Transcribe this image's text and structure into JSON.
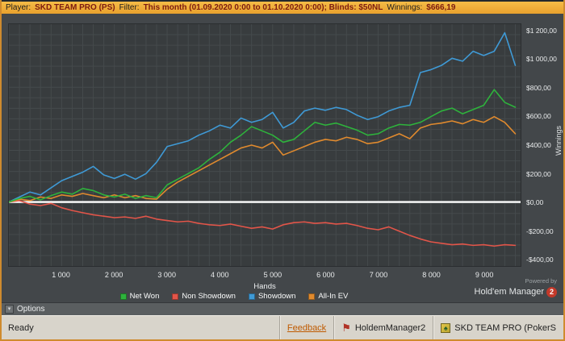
{
  "titlebar": {
    "player_label": "Player:",
    "player_value": "SKD TEAM PRO (PS)",
    "filter_label": "Filter:",
    "filter_value": "This month (01.09.2020 0:00 to 01.10.2020 0:00); Blinds: $50NL",
    "winnings_label": "Winnings:",
    "winnings_value": "$666,19"
  },
  "options_bar": {
    "label": "Options",
    "icon": "options-expander-icon"
  },
  "powered_by": {
    "line1": "Powered by",
    "line2": "Hold'em Manager",
    "badge": "2"
  },
  "status_bar": {
    "ready": "Ready",
    "feedback": "Feedback",
    "app1": "HoldemManager2",
    "app2": "SKD TEAM PRO (PokerS"
  },
  "colors": {
    "net_won": "#2eb33c",
    "non_showdown": "#e25549",
    "showdown": "#3f9ad6",
    "allin_ev": "#e08a2e",
    "zero_line": "#ffffff",
    "titlebar_bg": "#eda733",
    "plot_bg": "#383c3e"
  },
  "chart_data": {
    "type": "line",
    "title": "",
    "xlabel": "Hands",
    "ylabel": "Winnings",
    "xlim": [
      0,
      9700
    ],
    "ylim": [
      -450,
      1250
    ],
    "grid": true,
    "legend_position": "bottom",
    "zero_line_value": 0,
    "x_tick_values": [
      1000,
      2000,
      3000,
      4000,
      5000,
      6000,
      7000,
      8000,
      9000
    ],
    "x_tick_labels": [
      "1 000",
      "2 000",
      "3 000",
      "4 000",
      "5 000",
      "6 000",
      "7 000",
      "8 000",
      "9 000"
    ],
    "y_tick_values": [
      1200,
      1000,
      800,
      600,
      400,
      200,
      0,
      -200,
      -400
    ],
    "y_tick_labels": [
      "$1 200,00",
      "$1 000,00",
      "$800,00",
      "$600,00",
      "$400,00",
      "$200,00",
      "$0,00",
      "-$200,00",
      "-$400,00"
    ],
    "x": [
      0,
      200,
      400,
      600,
      800,
      1000,
      1200,
      1400,
      1600,
      1800,
      2000,
      2200,
      2400,
      2600,
      2800,
      3000,
      3200,
      3400,
      3600,
      3800,
      4000,
      4200,
      4400,
      4600,
      4800,
      5000,
      5200,
      5400,
      5600,
      5800,
      6000,
      6200,
      6400,
      6600,
      6800,
      7000,
      7200,
      7400,
      7600,
      7800,
      8000,
      8200,
      8400,
      8600,
      8800,
      9000,
      9200,
      9400,
      9600
    ],
    "series": [
      {
        "name": "Net Won",
        "color": "#2eb33c",
        "values": [
          0,
          25,
          40,
          15,
          45,
          70,
          55,
          95,
          80,
          50,
          35,
          55,
          25,
          45,
          30,
          120,
          160,
          200,
          240,
          300,
          350,
          420,
          470,
          530,
          500,
          470,
          420,
          440,
          500,
          560,
          540,
          555,
          530,
          505,
          470,
          480,
          520,
          545,
          540,
          560,
          600,
          640,
          660,
          620,
          650,
          680,
          790,
          700,
          666
        ]
      },
      {
        "name": "Non Showdown",
        "color": "#e25549",
        "values": [
          0,
          10,
          -15,
          -25,
          -10,
          -40,
          -60,
          -75,
          -90,
          -100,
          -110,
          -105,
          -115,
          -100,
          -120,
          -130,
          -140,
          -135,
          -150,
          -160,
          -165,
          -155,
          -170,
          -185,
          -175,
          -190,
          -160,
          -145,
          -140,
          -150,
          -145,
          -155,
          -150,
          -165,
          -185,
          -195,
          -175,
          -205,
          -235,
          -260,
          -280,
          -290,
          -300,
          -295,
          -305,
          -300,
          -310,
          -300,
          -305
        ]
      },
      {
        "name": "Showdown",
        "color": "#3f9ad6",
        "values": [
          0,
          35,
          70,
          50,
          100,
          150,
          180,
          210,
          250,
          190,
          165,
          195,
          160,
          200,
          280,
          390,
          410,
          430,
          470,
          500,
          540,
          520,
          590,
          560,
          580,
          630,
          520,
          560,
          640,
          660,
          645,
          665,
          650,
          610,
          580,
          600,
          640,
          665,
          680,
          910,
          930,
          960,
          1010,
          990,
          1060,
          1030,
          1060,
          1190,
          960
        ]
      },
      {
        "name": "All-In EV",
        "color": "#e08a2e",
        "values": [
          0,
          20,
          10,
          35,
          25,
          50,
          40,
          60,
          45,
          30,
          50,
          30,
          45,
          25,
          20,
          90,
          140,
          180,
          220,
          260,
          300,
          340,
          380,
          400,
          380,
          420,
          330,
          360,
          390,
          420,
          440,
          430,
          455,
          440,
          410,
          420,
          450,
          480,
          445,
          520,
          545,
          555,
          570,
          550,
          580,
          560,
          600,
          560,
          480
        ]
      }
    ],
    "draw_order": [
      1,
      2,
      3,
      0
    ]
  }
}
